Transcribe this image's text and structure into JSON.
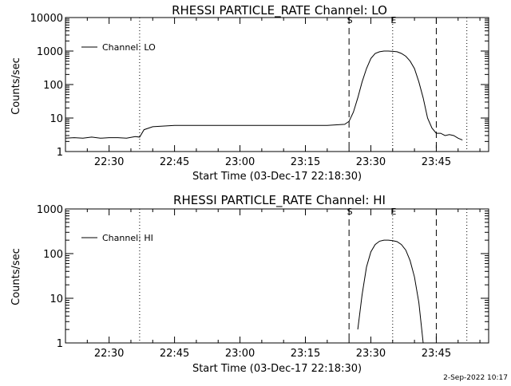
{
  "footer": {
    "timestamp": "2-Sep-2022 10:17"
  },
  "chart_data": [
    {
      "type": "line",
      "title": "RHESSI PARTICLE_RATE Channel: LO",
      "xlabel": "Start Time (03-Dec-17 22:18:30)",
      "ylabel": "Counts/sec",
      "y_scale": "log",
      "ylim": [
        1,
        10000
      ],
      "y_ticks": [
        1,
        10,
        100,
        1000,
        10000
      ],
      "y_tick_labels": [
        "1",
        "10",
        "100",
        "1000",
        "10000"
      ],
      "xlim": [
        "22:20",
        "23:57"
      ],
      "x_ticks": [
        "22:30",
        "22:45",
        "23:00",
        "23:15",
        "23:30",
        "23:45"
      ],
      "x_tick_labels": [
        "22:30",
        "22:45",
        "23:00",
        "23:15",
        "23:30",
        "23:45"
      ],
      "grid": false,
      "legend": "top-left",
      "series": [
        {
          "name": "Channel: LO",
          "color": "#000000",
          "points": [
            [
              "22:20",
              2.5
            ],
            [
              "22:22",
              2.6
            ],
            [
              "22:24",
              2.5
            ],
            [
              "22:26",
              2.7
            ],
            [
              "22:28",
              2.5
            ],
            [
              "22:30",
              2.6
            ],
            [
              "22:32",
              2.6
            ],
            [
              "22:34",
              2.5
            ],
            [
              "22:36",
              2.8
            ],
            [
              "22:37",
              2.7
            ],
            [
              "22:38",
              4.5
            ],
            [
              "22:40",
              5.5
            ],
            [
              "22:45",
              6.0
            ],
            [
              "22:50",
              6.0
            ],
            [
              "22:55",
              6.0
            ],
            [
              "23:00",
              6.0
            ],
            [
              "23:05",
              6.0
            ],
            [
              "23:10",
              6.0
            ],
            [
              "23:15",
              6.0
            ],
            [
              "23:20",
              6.0
            ],
            [
              "23:24",
              6.5
            ],
            [
              "23:25",
              8
            ],
            [
              "23:26",
              15
            ],
            [
              "23:27",
              40
            ],
            [
              "23:28",
              120
            ],
            [
              "23:29",
              300
            ],
            [
              "23:30",
              600
            ],
            [
              "23:31",
              850
            ],
            [
              "23:32",
              950
            ],
            [
              "23:33",
              1000
            ],
            [
              "23:34",
              1000
            ],
            [
              "23:35",
              980
            ],
            [
              "23:36",
              950
            ],
            [
              "23:37",
              850
            ],
            [
              "23:38",
              700
            ],
            [
              "23:39",
              500
            ],
            [
              "23:40",
              300
            ],
            [
              "23:41",
              120
            ],
            [
              "23:42",
              40
            ],
            [
              "23:43",
              10
            ],
            [
              "23:44",
              5
            ],
            [
              "23:45",
              3.5
            ],
            [
              "23:46",
              3.5
            ],
            [
              "23:47",
              3.0
            ],
            [
              "23:48",
              3.2
            ],
            [
              "23:49",
              3.0
            ],
            [
              "23:50",
              2.5
            ],
            [
              "23:51",
              2.2
            ]
          ]
        }
      ],
      "annotations": [
        {
          "label": "S",
          "at": "23:25",
          "style": "dashed"
        },
        {
          "label": "E",
          "at": "23:35",
          "style": "dotted"
        },
        {
          "label": "",
          "at": "23:45",
          "style": "dashed"
        },
        {
          "label": "",
          "at": "22:37",
          "style": "dotted"
        },
        {
          "label": "",
          "at": "23:52",
          "style": "dotted"
        }
      ]
    },
    {
      "type": "line",
      "title": "RHESSI PARTICLE_RATE Channel: HI",
      "xlabel": "Start Time (03-Dec-17 22:18:30)",
      "ylabel": "Counts/sec",
      "y_scale": "log",
      "ylim": [
        1,
        1000
      ],
      "y_ticks": [
        1,
        10,
        100,
        1000
      ],
      "y_tick_labels": [
        "1",
        "10",
        "100",
        "1000"
      ],
      "xlim": [
        "22:20",
        "23:57"
      ],
      "x_ticks": [
        "22:30",
        "22:45",
        "23:00",
        "23:15",
        "23:30",
        "23:45"
      ],
      "x_tick_labels": [
        "22:30",
        "22:45",
        "23:00",
        "23:15",
        "23:30",
        "23:45"
      ],
      "grid": false,
      "legend": "top-left",
      "series": [
        {
          "name": "Channel: HI",
          "color": "#000000",
          "points": [
            [
              "23:27",
              2
            ],
            [
              "23:28",
              12
            ],
            [
              "23:29",
              50
            ],
            [
              "23:30",
              110
            ],
            [
              "23:31",
              160
            ],
            [
              "23:32",
              190
            ],
            [
              "23:33",
              200
            ],
            [
              "23:34",
              200
            ],
            [
              "23:35",
              195
            ],
            [
              "23:36",
              185
            ],
            [
              "23:37",
              160
            ],
            [
              "23:38",
              120
            ],
            [
              "23:39",
              70
            ],
            [
              "23:40",
              30
            ],
            [
              "23:41",
              8
            ],
            [
              "23:42",
              1
            ]
          ]
        }
      ],
      "annotations": [
        {
          "label": "S",
          "at": "23:25",
          "style": "dashed"
        },
        {
          "label": "E",
          "at": "23:35",
          "style": "dotted"
        },
        {
          "label": "",
          "at": "23:45",
          "style": "dashed"
        },
        {
          "label": "",
          "at": "22:37",
          "style": "dotted"
        },
        {
          "label": "",
          "at": "23:52",
          "style": "dotted"
        }
      ]
    }
  ]
}
